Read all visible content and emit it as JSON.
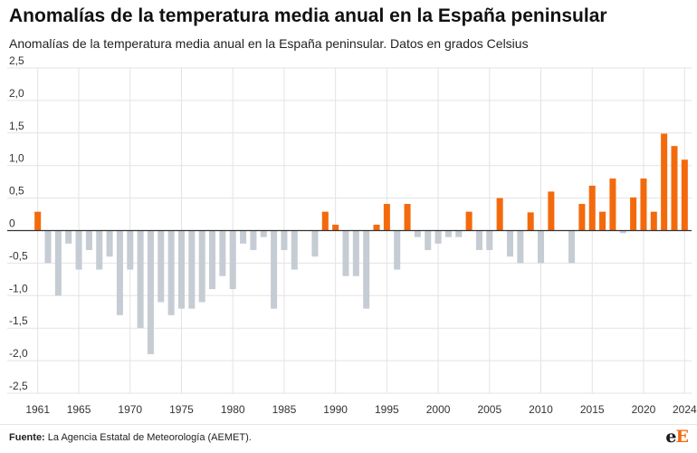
{
  "header": {
    "title": "Anomalías de la temperatura media anual en la España peninsular",
    "subtitle": "Anomalías de la temperatura media anual en la España peninsular. Datos en grados Celsius"
  },
  "footer": {
    "source_label": "Fuente:",
    "source_text": " La Agencia Estatal de Meteorología (AEMET).",
    "logo": "eE"
  },
  "colors": {
    "positive": "#f36a0d",
    "negative": "#c6ccd3",
    "grid": "#e3e3e3",
    "zero": "#333333",
    "tick_text": "#333333"
  },
  "chart_data": {
    "type": "bar",
    "title": "Anomalías de la temperatura media anual en la España peninsular",
    "subtitle": "Anomalías de la temperatura media anual en la España peninsular. Datos en grados Celsius",
    "xlabel": "",
    "ylabel": "",
    "ylim": [
      -2.5,
      2.5
    ],
    "yticks": [
      2.5,
      2.0,
      1.5,
      1.0,
      0.5,
      0,
      -0.5,
      -1.0,
      -1.5,
      -2.0,
      -2.5
    ],
    "ytick_labels": [
      "2,5",
      "2,0",
      "1,5",
      "1,0",
      "0,5",
      "0",
      "-0,5",
      "-1,0",
      "-1,5",
      "-2,0",
      "-2,5"
    ],
    "xtick_labels": [
      "1961",
      "1965",
      "1970",
      "1975",
      "1980",
      "1985",
      "1990",
      "1995",
      "2000",
      "2005",
      "2010",
      "2015",
      "2020",
      "2024"
    ],
    "grid": true,
    "categories": [
      1961,
      1962,
      1963,
      1964,
      1965,
      1966,
      1967,
      1968,
      1969,
      1970,
      1971,
      1972,
      1973,
      1974,
      1975,
      1976,
      1977,
      1978,
      1979,
      1980,
      1981,
      1982,
      1983,
      1984,
      1985,
      1986,
      1987,
      1988,
      1989,
      1990,
      1991,
      1992,
      1993,
      1994,
      1995,
      1996,
      1997,
      1998,
      1999,
      2000,
      2001,
      2002,
      2003,
      2004,
      2005,
      2006,
      2007,
      2008,
      2009,
      2010,
      2011,
      2012,
      2013,
      2014,
      2015,
      2016,
      2017,
      2018,
      2019,
      2020,
      2021,
      2022,
      2023,
      2024
    ],
    "values": [
      0.29,
      -0.5,
      -1.0,
      -0.2,
      -0.6,
      -0.3,
      -0.6,
      -0.4,
      -1.3,
      -0.6,
      -1.5,
      -1.9,
      -1.1,
      -1.3,
      -1.2,
      -1.2,
      -1.1,
      -0.9,
      -0.7,
      -0.9,
      -0.2,
      -0.3,
      -0.1,
      -1.2,
      -0.3,
      -0.6,
      0.0,
      -0.4,
      0.29,
      0.09,
      -0.7,
      -0.7,
      -1.2,
      0.09,
      0.41,
      -0.6,
      0.41,
      -0.1,
      -0.3,
      -0.2,
      -0.1,
      -0.1,
      0.29,
      -0.3,
      -0.3,
      0.5,
      -0.4,
      -0.5,
      0.28,
      -0.5,
      0.6,
      0.0,
      -0.5,
      0.41,
      0.69,
      0.29,
      0.8,
      -0.04,
      0.51,
      0.8,
      0.29,
      1.49,
      1.3,
      1.09
    ]
  }
}
